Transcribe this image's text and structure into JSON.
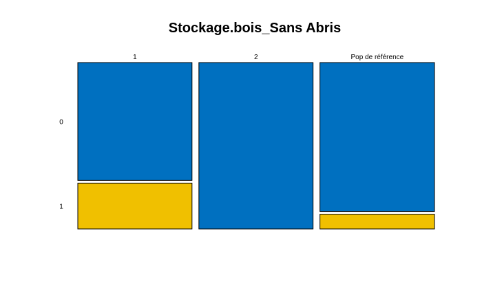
{
  "chart_data": {
    "type": "mosaic",
    "title": "Stockage.bois_Sans Abris",
    "xlabel": "",
    "ylabel": "",
    "columns": [
      "1",
      "2",
      "Pop de référence"
    ],
    "rows": [
      "0",
      "1"
    ],
    "column_widths": [
      0.333,
      0.333,
      0.334
    ],
    "proportions": [
      {
        "column": "1",
        "values": {
          "0": 0.72,
          "1": 0.28
        }
      },
      {
        "column": "2",
        "values": {
          "0": 1.0,
          "1": 0.0
        }
      },
      {
        "column": "Pop de référence",
        "values": {
          "0": 0.91,
          "1": 0.09
        }
      }
    ],
    "colors": {
      "0": "#0070C0",
      "1": "#F0C000"
    },
    "outline_color": "#000000",
    "grid": false,
    "legend": "none"
  }
}
